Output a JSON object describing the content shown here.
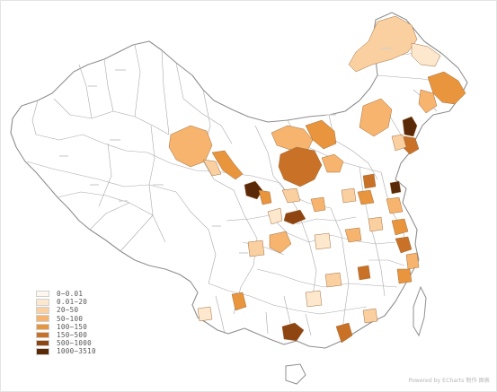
{
  "map": {
    "legend": {
      "items": [
        {
          "label": "0~0.01",
          "color": "#fff7ee"
        },
        {
          "label": "0.01~20",
          "color": "#fde7cd"
        },
        {
          "label": "20~50",
          "color": "#fbd0a1"
        },
        {
          "label": "50~100",
          "color": "#f6b46e"
        },
        {
          "label": "100~150",
          "color": "#e8953d"
        },
        {
          "label": "150~500",
          "color": "#c87127"
        },
        {
          "label": "500~1000",
          "color": "#8f4512"
        },
        {
          "label": "1000~3510",
          "color": "#5a2a08"
        }
      ]
    },
    "credit": "Powered by ECharts 制作 图表"
  }
}
